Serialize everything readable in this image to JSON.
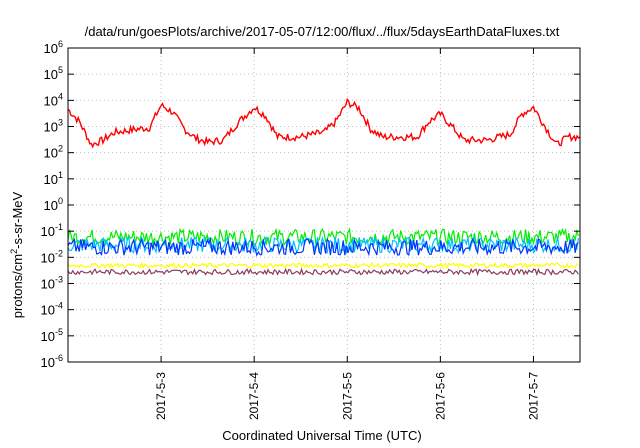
{
  "chart_data": {
    "type": "line",
    "title": "/data/run/goesPlots/archive/2017-05-07/12:00/flux/../flux/5daysEarthDataFluxes.txt",
    "xlabel": "Coordinated Universal Time (UTC)",
    "ylabel": {
      "base": "protons/cm",
      "sup": "2",
      "rest": "-s-sr-MeV"
    },
    "x_scale": "time",
    "xlim": [
      "2017-05-02T00:00",
      "2017-05-07T12:00"
    ],
    "x_ticks": [
      {
        "x": "2017-05-03T00:00",
        "label": "2017-5-3"
      },
      {
        "x": "2017-05-04T00:00",
        "label": "2017-5-4"
      },
      {
        "x": "2017-05-05T00:00",
        "label": "2017-5-5"
      },
      {
        "x": "2017-05-06T00:00",
        "label": "2017-5-6"
      },
      {
        "x": "2017-05-07T00:00",
        "label": "2017-5-7"
      }
    ],
    "y_scale": "log",
    "ylim": [
      1e-06,
      1000000.0
    ],
    "y_ticks": [
      {
        "base": "10",
        "exp": "6",
        "value": 1000000.0
      },
      {
        "base": "10",
        "exp": "5",
        "value": 100000.0
      },
      {
        "base": "10",
        "exp": "4",
        "value": 10000.0
      },
      {
        "base": "10",
        "exp": "3",
        "value": 1000.0
      },
      {
        "base": "10",
        "exp": "2",
        "value": 100.0
      },
      {
        "base": "10",
        "exp": "1",
        "value": 10.0
      },
      {
        "base": "10",
        "exp": "0",
        "value": 1.0
      },
      {
        "base": "10",
        "exp": "-1",
        "value": 0.1
      },
      {
        "base": "10",
        "exp": "-2",
        "value": 0.01
      },
      {
        "base": "10",
        "exp": "-3",
        "value": 0.001
      },
      {
        "base": "10",
        "exp": "-4",
        "value": 0.0001
      },
      {
        "base": "10",
        "exp": "-5",
        "value": 1e-05
      },
      {
        "base": "10",
        "exp": "-6",
        "value": 1e-06
      }
    ],
    "grid": true,
    "legend": "none",
    "series": [
      {
        "color": "#ff0000",
        "style": "line",
        "values": [
          [
            "2017-05-02T00:00",
            4500
          ],
          [
            "2017-05-02T03:00",
            1500
          ],
          [
            "2017-05-02T06:00",
            200
          ],
          [
            "2017-05-02T09:00",
            300
          ],
          [
            "2017-05-02T12:00",
            600
          ],
          [
            "2017-05-02T18:00",
            800
          ],
          [
            "2017-05-02T21:00",
            900
          ],
          [
            "2017-05-03T00:00",
            6500
          ],
          [
            "2017-05-03T03:00",
            3500
          ],
          [
            "2017-05-03T06:00",
            800
          ],
          [
            "2017-05-03T09:00",
            350
          ],
          [
            "2017-05-03T12:00",
            250
          ],
          [
            "2017-05-03T16:00",
            300
          ],
          [
            "2017-05-03T20:00",
            1500
          ],
          [
            "2017-05-04T00:00",
            5500
          ],
          [
            "2017-05-04T03:00",
            2500
          ],
          [
            "2017-05-04T06:00",
            400
          ],
          [
            "2017-05-04T12:00",
            400
          ],
          [
            "2017-05-04T18:00",
            600
          ],
          [
            "2017-05-04T21:00",
            1500
          ],
          [
            "2017-05-05T00:00",
            8500
          ],
          [
            "2017-05-05T03:00",
            5000
          ],
          [
            "2017-05-05T06:00",
            800
          ],
          [
            "2017-05-05T09:00",
            400
          ],
          [
            "2017-05-05T12:00",
            400
          ],
          [
            "2017-05-05T18:00",
            400
          ],
          [
            "2017-05-05T21:00",
            1500
          ],
          [
            "2017-05-06T00:00",
            3000
          ],
          [
            "2017-05-06T03:00",
            1000
          ],
          [
            "2017-05-06T06:00",
            300
          ],
          [
            "2017-05-06T12:00",
            300
          ],
          [
            "2017-05-06T18:00",
            500
          ],
          [
            "2017-05-06T21:00",
            3000
          ],
          [
            "2017-05-07T00:00",
            5500
          ],
          [
            "2017-05-07T03:00",
            1000
          ],
          [
            "2017-05-07T06:00",
            200
          ],
          [
            "2017-05-07T09:00",
            400
          ],
          [
            "2017-05-07T12:00",
            400
          ]
        ]
      },
      {
        "color": "#00ee00",
        "style": "band",
        "band": [
          0.03,
          0.12
        ],
        "values": [
          [
            "2017-05-02T00:00",
            0.05
          ],
          [
            "2017-05-07T12:00",
            0.05
          ]
        ]
      },
      {
        "color": "#00bfff",
        "style": "band",
        "band": [
          0.015,
          0.06
        ],
        "values": [
          [
            "2017-05-02T00:00",
            0.03
          ],
          [
            "2017-05-07T12:00",
            0.03
          ]
        ]
      },
      {
        "color": "#0033ff",
        "style": "band",
        "band": [
          0.012,
          0.05
        ],
        "values": [
          [
            "2017-05-02T00:00",
            0.025
          ],
          [
            "2017-05-07T12:00",
            0.025
          ]
        ]
      },
      {
        "color": "#ffff00",
        "style": "band",
        "band": [
          0.004,
          0.006
        ],
        "values": [
          [
            "2017-05-02T00:00",
            0.005
          ],
          [
            "2017-05-07T12:00",
            0.005
          ]
        ]
      },
      {
        "color": "#8b3a62",
        "style": "band",
        "band": [
          0.0022,
          0.0035
        ],
        "values": [
          [
            "2017-05-02T00:00",
            0.0028
          ],
          [
            "2017-05-07T12:00",
            0.0028
          ]
        ]
      }
    ]
  }
}
